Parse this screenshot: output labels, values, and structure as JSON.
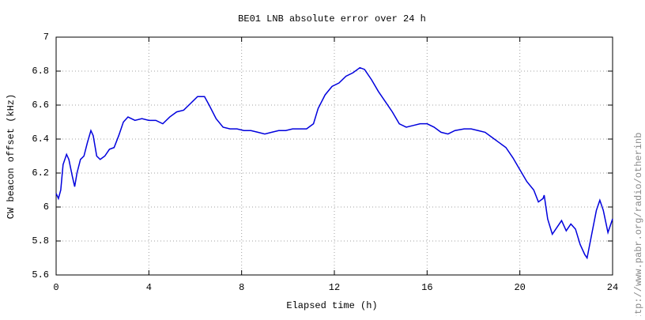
{
  "chart_data": {
    "type": "line",
    "title": "BE01 LNB absolute error over 24 h",
    "x_label": "Elapsed time (h)",
    "y_label": "CW beacon offset (kHz)",
    "watermark": "http://www.pabr.org/radio/otherinb",
    "xlim": [
      0,
      24
    ],
    "xticks": [
      0,
      4,
      8,
      12,
      16,
      20,
      24
    ],
    "ylim": [
      5.6,
      7
    ],
    "yticks": [
      5.6,
      5.8,
      6,
      6.2,
      6.4,
      6.6,
      6.8,
      7
    ],
    "grid": true,
    "x": [
      0,
      0.1,
      0.2,
      0.3,
      0.45,
      0.55,
      0.7,
      0.8,
      0.9,
      1.05,
      1.2,
      1.35,
      1.5,
      1.6,
      1.75,
      1.9,
      2.1,
      2.3,
      2.5,
      2.7,
      2.9,
      3.1,
      3.4,
      3.7,
      4,
      4.3,
      4.6,
      4.9,
      5.2,
      5.5,
      5.8,
      6.1,
      6.4,
      6.6,
      6.9,
      7.2,
      7.5,
      7.8,
      8.1,
      8.4,
      8.7,
      9,
      9.3,
      9.6,
      9.9,
      10.2,
      10.5,
      10.8,
      11.1,
      11.3,
      11.6,
      11.9,
      12.2,
      12.5,
      12.8,
      13.1,
      13.3,
      13.6,
      13.9,
      14.2,
      14.5,
      14.8,
      15.1,
      15.4,
      15.7,
      16,
      16.3,
      16.6,
      16.9,
      17.2,
      17.6,
      17.9,
      18.2,
      18.5,
      18.8,
      19.1,
      19.4,
      19.7,
      20,
      20.3,
      20.6,
      20.8,
      21,
      21.05,
      21.2,
      21.4,
      21.6,
      21.8,
      22,
      22.2,
      22.4,
      22.6,
      22.8,
      22.9,
      23.1,
      23.3,
      23.45,
      23.6,
      23.8,
      24
    ],
    "series": [
      {
        "name": "BE01",
        "color": "#0000dd",
        "values": [
          6.08,
          6.05,
          6.1,
          6.25,
          6.31,
          6.28,
          6.18,
          6.12,
          6.2,
          6.28,
          6.3,
          6.38,
          6.45,
          6.42,
          6.3,
          6.28,
          6.3,
          6.34,
          6.35,
          6.42,
          6.5,
          6.53,
          6.51,
          6.52,
          6.51,
          6.51,
          6.49,
          6.53,
          6.56,
          6.57,
          6.61,
          6.65,
          6.65,
          6.6,
          6.52,
          6.47,
          6.46,
          6.46,
          6.45,
          6.45,
          6.44,
          6.43,
          6.44,
          6.45,
          6.45,
          6.46,
          6.46,
          6.46,
          6.49,
          6.58,
          6.66,
          6.71,
          6.73,
          6.77,
          6.79,
          6.82,
          6.81,
          6.75,
          6.68,
          6.62,
          6.56,
          6.49,
          6.47,
          6.48,
          6.49,
          6.49,
          6.47,
          6.44,
          6.43,
          6.45,
          6.46,
          6.46,
          6.45,
          6.44,
          6.41,
          6.38,
          6.35,
          6.29,
          6.22,
          6.15,
          6.1,
          6.03,
          6.05,
          6.07,
          5.93,
          5.84,
          5.88,
          5.92,
          5.86,
          5.9,
          5.87,
          5.78,
          5.72,
          5.7,
          5.84,
          5.98,
          6.04,
          5.98,
          5.85,
          5.93
        ]
      }
    ]
  }
}
